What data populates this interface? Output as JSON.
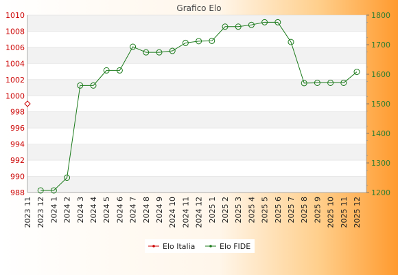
{
  "chart_data": {
    "type": "line",
    "title": "Grafico Elo",
    "categories": [
      "2023 11",
      "2023 12",
      "2024 1",
      "2024 2",
      "2024 3",
      "2024 4",
      "2024 5",
      "2024 6",
      "2024 7",
      "2024 8",
      "2024 9",
      "2024 10",
      "2024 11",
      "2024 12",
      "2025 1",
      "2025 2",
      "2025 3",
      "2025 4",
      "2025 5",
      "2025 6",
      "2025 7",
      "2025 8",
      "2025 9",
      "2025 10",
      "2025 11",
      "2025 12"
    ],
    "left_axis": {
      "ylim": [
        988,
        1010
      ],
      "ticks": [
        988,
        990,
        992,
        994,
        996,
        998,
        1000,
        1002,
        1004,
        1006,
        1008,
        1010
      ],
      "color": "#cc0000"
    },
    "right_axis": {
      "ylim": [
        1200,
        1800
      ],
      "ticks": [
        1200,
        1300,
        1400,
        1500,
        1600,
        1700,
        1800
      ],
      "color": "#2e7d32"
    },
    "series": [
      {
        "name": "Elo Italia",
        "axis": "left",
        "color": "#cc0000",
        "values": [
          999,
          null,
          null,
          null,
          null,
          null,
          null,
          null,
          null,
          null,
          null,
          null,
          null,
          null,
          null,
          null,
          null,
          null,
          null,
          null,
          null,
          null,
          null,
          null,
          null,
          null
        ]
      },
      {
        "name": "Elo FIDE",
        "axis": "right",
        "color": "#1a7a1a",
        "values": [
          null,
          1207,
          1207,
          1250,
          1562,
          1562,
          1613,
          1613,
          1693,
          1674,
          1674,
          1679,
          1706,
          1712,
          1713,
          1761,
          1761,
          1767,
          1776,
          1776,
          1709,
          1570,
          1571,
          1571,
          1571,
          1608
        ]
      }
    ],
    "grid": true,
    "legend_position": "bottom-center"
  }
}
